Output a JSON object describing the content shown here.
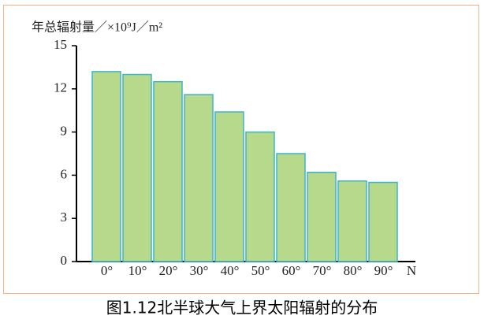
{
  "chart_data": {
    "type": "bar",
    "title": "图1.12北半球大气上界太阳辐射的分布",
    "y_label": "年总辐射量／×10⁹J／m²",
    "x_label": "N",
    "categories": [
      "0°",
      "10°",
      "20°",
      "30°",
      "40°",
      "50°",
      "60°",
      "70°",
      "80°",
      "90°"
    ],
    "values": [
      13.2,
      13.0,
      12.5,
      11.6,
      10.4,
      9.0,
      7.5,
      6.2,
      5.6,
      5.5
    ],
    "color": "#b7d98c",
    "edge_color": "#3db5c9",
    "ylim": [
      0,
      15
    ],
    "yticks": [
      0,
      3,
      6,
      9,
      12,
      15
    ],
    "grid": false
  }
}
